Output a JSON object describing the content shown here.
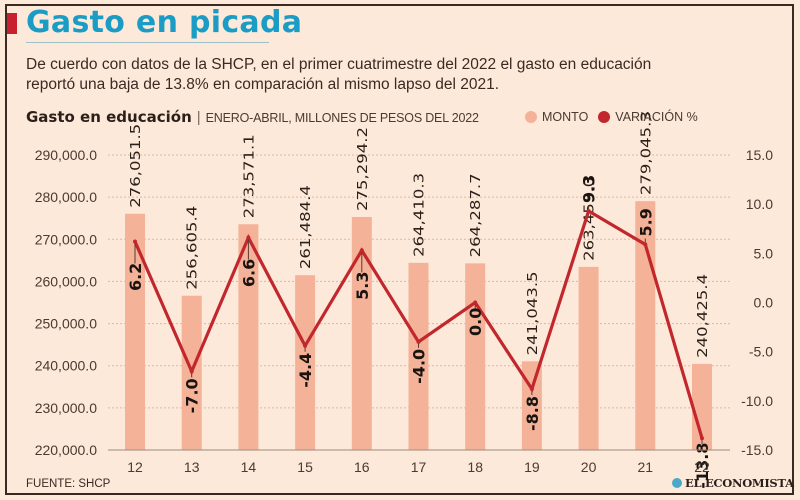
{
  "header": {
    "title": "Gasto en picada",
    "subtitle_line1": "De cuerdo con datos de la SHCP, en el primer cuatrimestre del 2022 el gasto en educación",
    "subtitle_line2": "reportó una baja de 13.8% en comparación al mismo lapso del 2021."
  },
  "chart_heading": {
    "title": "Gasto en educación",
    "separator": "|",
    "description": "ENERO-ABRIL, MILLONES DE PESOS DEL 2022"
  },
  "legend": {
    "items": [
      {
        "label": "MONTO",
        "color": "#f4b299"
      },
      {
        "label": "VARIACIÓN %",
        "color": "#c1272d"
      }
    ]
  },
  "footer": {
    "source": "FUENTE: SHCP",
    "brand": "EL ECONOMISTA"
  },
  "colors": {
    "bar": "#f4b299",
    "line": "#c1272d",
    "title": "#1a9cc4",
    "accent": "#c8202f",
    "background": "#fde9d9"
  },
  "chart_data": {
    "type": "bar",
    "title": "Gasto en educación",
    "subtitle": "ENERO-ABRIL, MILLONES DE PESOS DEL 2022",
    "xlabel": "",
    "ylabel": "",
    "categories": [
      "12",
      "13",
      "14",
      "15",
      "16",
      "17",
      "18",
      "19",
      "20",
      "21",
      "22"
    ],
    "series": [
      {
        "name": "MONTO",
        "type": "bar",
        "axis": "left",
        "values": [
          276051.5,
          256605.4,
          273571.1,
          261484.4,
          275294.2,
          264410.3,
          264287.7,
          241043.5,
          263453.0,
          279045.3,
          240425.4
        ],
        "labels": [
          "276,051.5",
          "256,605.4",
          "273,571.1",
          "261,484.4",
          "275,294.2",
          "264,410.3",
          "264,287.7",
          "241,043.5",
          "263,453.0",
          "279,045.3",
          "240,425.4"
        ]
      },
      {
        "name": "VARIACIÓN %",
        "type": "line",
        "axis": "right",
        "values": [
          6.2,
          -7.0,
          6.6,
          -4.4,
          5.3,
          -4.0,
          0.0,
          -8.8,
          9.3,
          5.9,
          -13.8
        ],
        "labels": [
          "6.2",
          "-7.0",
          "6.6",
          "-4.4",
          "5.3",
          "-4.0",
          "0.0",
          "-8.8",
          "9.3",
          "5.9",
          "-13.8"
        ]
      }
    ],
    "left_axis": {
      "range": [
        220000,
        290000
      ],
      "ticks": [
        290000,
        280000,
        270000,
        260000,
        250000,
        240000,
        230000,
        220000
      ],
      "tick_labels": [
        "290,000.0",
        "280,000.0",
        "270,000.0",
        "260,000.0",
        "250,000.0",
        "240,000.0",
        "230,000.0",
        "220,000.0"
      ]
    },
    "right_axis": {
      "range": [
        -15,
        15
      ],
      "ticks": [
        15,
        10,
        5,
        0,
        -5,
        -10,
        -15
      ],
      "tick_labels": [
        "15.0",
        "10.0",
        "5.0",
        "0.0",
        "-5.0",
        "-10.0",
        "-15.0"
      ]
    },
    "grid": true,
    "legend_position": "top-right"
  }
}
